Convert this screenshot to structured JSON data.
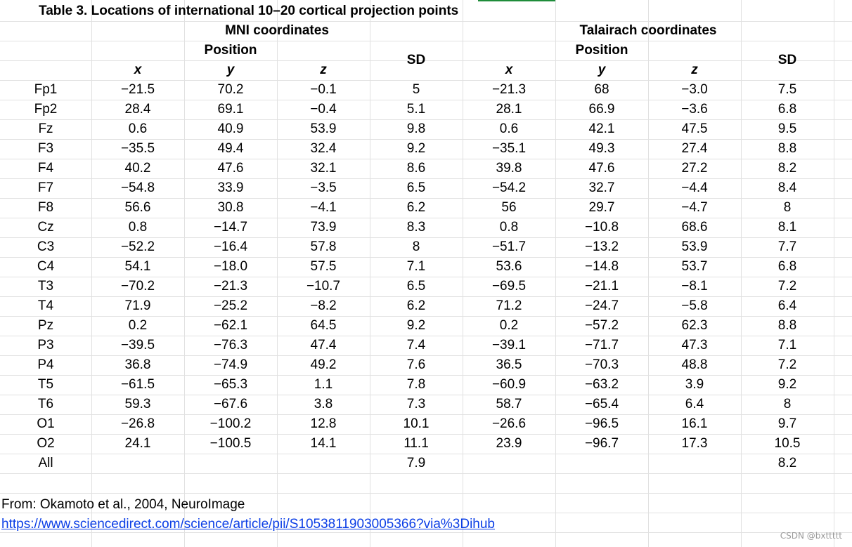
{
  "title": "Table 3. Locations of international 10–20 cortical projection points",
  "groups": {
    "mni": "MNI coordinates",
    "tal": "Talairach coordinates",
    "position": "Position",
    "sd": "SD"
  },
  "axes": [
    "x",
    "y",
    "z"
  ],
  "rows": [
    {
      "label": "Fp1",
      "mni": [
        "−21.5",
        "70.2",
        "−0.1",
        "5"
      ],
      "tal": [
        "−21.3",
        "68",
        "−3.0",
        "7.5"
      ]
    },
    {
      "label": "Fp2",
      "mni": [
        "28.4",
        "69.1",
        "−0.4",
        "5.1"
      ],
      "tal": [
        "28.1",
        "66.9",
        "−3.6",
        "6.8"
      ]
    },
    {
      "label": "Fz",
      "mni": [
        "0.6",
        "40.9",
        "53.9",
        "9.8"
      ],
      "tal": [
        "0.6",
        "42.1",
        "47.5",
        "9.5"
      ]
    },
    {
      "label": "F3",
      "mni": [
        "−35.5",
        "49.4",
        "32.4",
        "9.2"
      ],
      "tal": [
        "−35.1",
        "49.3",
        "27.4",
        "8.8"
      ]
    },
    {
      "label": "F4",
      "mni": [
        "40.2",
        "47.6",
        "32.1",
        "8.6"
      ],
      "tal": [
        "39.8",
        "47.6",
        "27.2",
        "8.2"
      ]
    },
    {
      "label": "F7",
      "mni": [
        "−54.8",
        "33.9",
        "−3.5",
        "6.5"
      ],
      "tal": [
        "−54.2",
        "32.7",
        "−4.4",
        "8.4"
      ]
    },
    {
      "label": "F8",
      "mni": [
        "56.6",
        "30.8",
        "−4.1",
        "6.2"
      ],
      "tal": [
        "56",
        "29.7",
        "−4.7",
        "8"
      ]
    },
    {
      "label": "Cz",
      "mni": [
        "0.8",
        "−14.7",
        "73.9",
        "8.3"
      ],
      "tal": [
        "0.8",
        "−10.8",
        "68.6",
        "8.1"
      ]
    },
    {
      "label": "C3",
      "mni": [
        "−52.2",
        "−16.4",
        "57.8",
        "8"
      ],
      "tal": [
        "−51.7",
        "−13.2",
        "53.9",
        "7.7"
      ]
    },
    {
      "label": "C4",
      "mni": [
        "54.1",
        "−18.0",
        "57.5",
        "7.1"
      ],
      "tal": [
        "53.6",
        "−14.8",
        "53.7",
        "6.8"
      ]
    },
    {
      "label": "T3",
      "mni": [
        "−70.2",
        "−21.3",
        "−10.7",
        "6.5"
      ],
      "tal": [
        "−69.5",
        "−21.1",
        "−8.1",
        "7.2"
      ]
    },
    {
      "label": "T4",
      "mni": [
        "71.9",
        "−25.2",
        "−8.2",
        "6.2"
      ],
      "tal": [
        "71.2",
        "−24.7",
        "−5.8",
        "6.4"
      ]
    },
    {
      "label": "Pz",
      "mni": [
        "0.2",
        "−62.1",
        "64.5",
        "9.2"
      ],
      "tal": [
        "0.2",
        "−57.2",
        "62.3",
        "8.8"
      ]
    },
    {
      "label": "P3",
      "mni": [
        "−39.5",
        "−76.3",
        "47.4",
        "7.4"
      ],
      "tal": [
        "−39.1",
        "−71.7",
        "47.3",
        "7.1"
      ]
    },
    {
      "label": "P4",
      "mni": [
        "36.8",
        "−74.9",
        "49.2",
        "7.6"
      ],
      "tal": [
        "36.5",
        "−70.3",
        "48.8",
        "7.2"
      ]
    },
    {
      "label": "T5",
      "mni": [
        "−61.5",
        "−65.3",
        "1.1",
        "7.8"
      ],
      "tal": [
        "−60.9",
        "−63.2",
        "3.9",
        "9.2"
      ]
    },
    {
      "label": "T6",
      "mni": [
        "59.3",
        "−67.6",
        "3.8",
        "7.3"
      ],
      "tal": [
        "58.7",
        "−65.4",
        "6.4",
        "8"
      ]
    },
    {
      "label": "O1",
      "mni": [
        "−26.8",
        "−100.2",
        "12.8",
        "10.1"
      ],
      "tal": [
        "−26.6",
        "−96.5",
        "16.1",
        "9.7"
      ]
    },
    {
      "label": "O2",
      "mni": [
        "24.1",
        "−100.5",
        "14.1",
        "11.1"
      ],
      "tal": [
        "23.9",
        "−96.7",
        "17.3",
        "10.5"
      ]
    },
    {
      "label": "All",
      "mni": [
        "",
        "",
        "",
        "7.9"
      ],
      "tal": [
        "",
        "",
        "",
        "8.2"
      ]
    }
  ],
  "source": "From: Okamoto et al., 2004, NeuroImage",
  "link": "https://www.sciencedirect.com/science/article/pii/S1053811903005366?via%3Dihub",
  "watermark": "CSDN @bxttttt"
}
